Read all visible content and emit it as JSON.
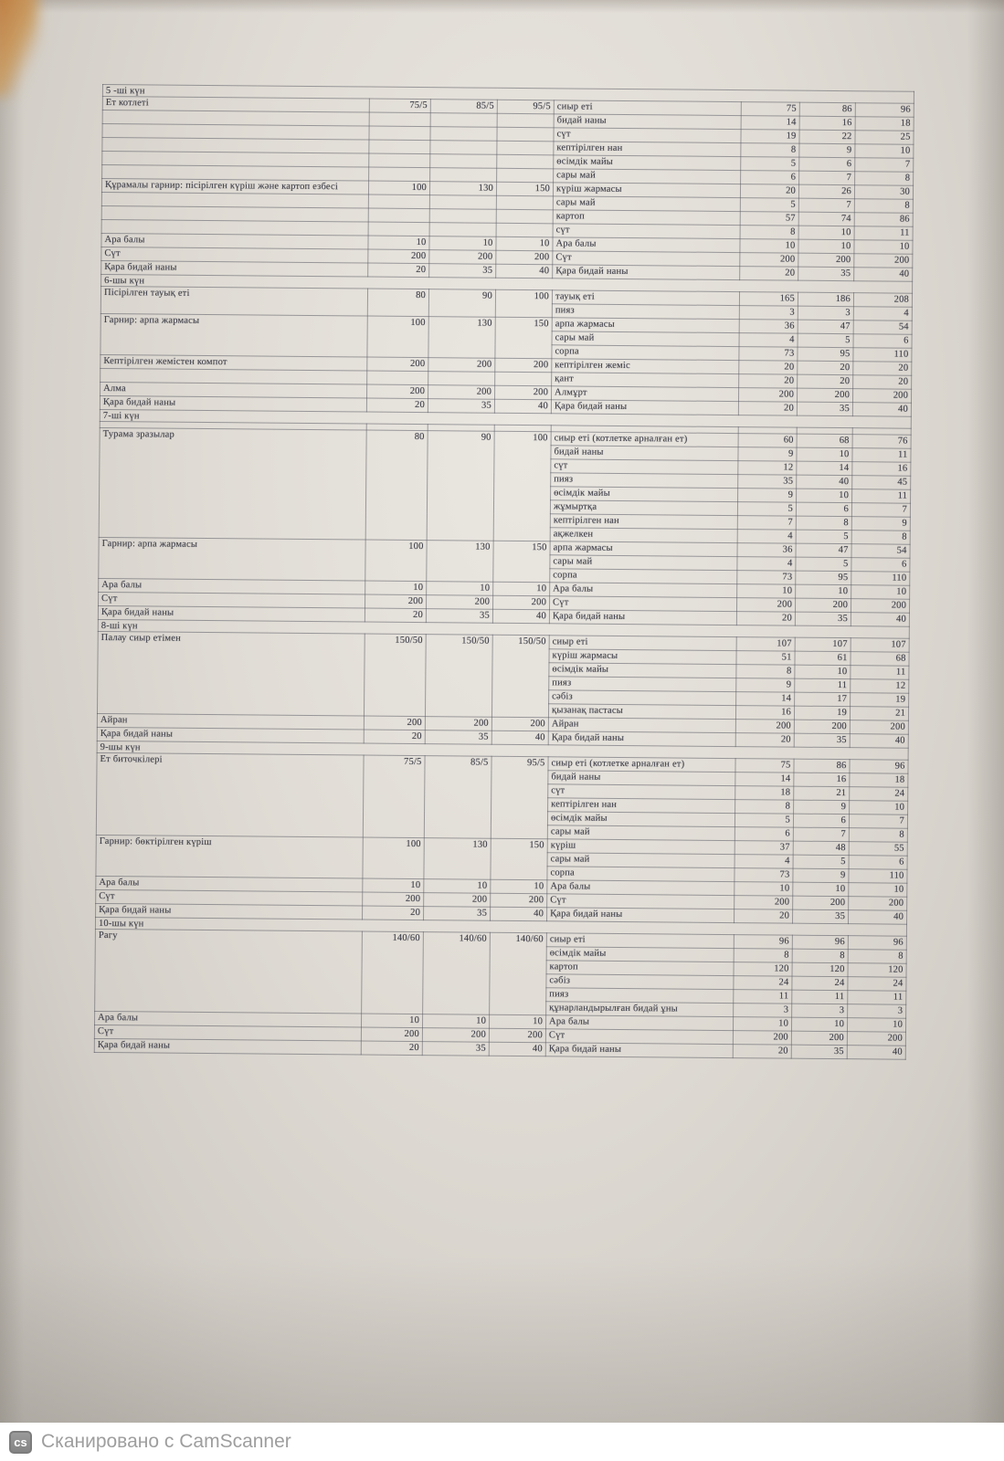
{
  "table": {
    "days": [
      {
        "title": "5 -ші күн",
        "rows": [
          {
            "dish": "Ет котлеті",
            "p": [
              "75/5",
              "85/5",
              "95/5"
            ],
            "span": 1,
            "ing": "сиыр еті",
            "v": [
              "75",
              "86",
              "96"
            ]
          },
          {
            "left_empty": true,
            "ing": "бидай наны",
            "v": [
              "14",
              "16",
              "18"
            ]
          },
          {
            "left_empty": true,
            "ing": "сүт",
            "v": [
              "19",
              "22",
              "25"
            ]
          },
          {
            "left_empty": true,
            "ing": "кептірілген нан",
            "v": [
              "8",
              "9",
              "10"
            ]
          },
          {
            "left_empty": true,
            "ing": "өсімдік майы",
            "v": [
              "5",
              "6",
              "7"
            ]
          },
          {
            "left_empty": true,
            "ing": "сары май",
            "v": [
              "6",
              "7",
              "8"
            ]
          },
          {
            "dish": "Құрамалы гарнир: пісірілген күріш және картоп езбесі",
            "p": [
              "100",
              "130",
              "150"
            ],
            "span": 1,
            "ing": "күріш жармасы",
            "v": [
              "20",
              "26",
              "30"
            ]
          },
          {
            "left_empty": true,
            "ing": "сары май",
            "v": [
              "5",
              "7",
              "8"
            ]
          },
          {
            "left_empty": true,
            "ing": "картоп",
            "v": [
              "57",
              "74",
              "86"
            ]
          },
          {
            "left_empty": true,
            "ing": "сүт",
            "v": [
              "8",
              "10",
              "11"
            ]
          },
          {
            "dish": "Ара балы",
            "p": [
              "10",
              "10",
              "10"
            ],
            "span": 1,
            "ing": "Ара балы",
            "v": [
              "10",
              "10",
              "10"
            ]
          },
          {
            "dish": "Сүт",
            "p": [
              "200",
              "200",
              "200"
            ],
            "span": 1,
            "ing": "Сүт",
            "v": [
              "200",
              "200",
              "200"
            ]
          },
          {
            "dish": "Қара бидай наны",
            "p": [
              "20",
              "35",
              "40"
            ],
            "span": 1,
            "ing": "Қара бидай наны",
            "v": [
              "20",
              "35",
              "40"
            ]
          }
        ]
      },
      {
        "title": "6-шы күн",
        "rows": [
          {
            "dish": "Пісірілген тауық еті",
            "p": [
              "80",
              "90",
              "100"
            ],
            "span": 2,
            "ing": "тауық еті",
            "v": [
              "165",
              "186",
              "208"
            ]
          },
          {
            "ing": "пияз",
            "v": [
              "3",
              "3",
              "4"
            ]
          },
          {
            "dish": "Гарнир: арпа жармасы",
            "p": [
              "100",
              "130",
              "150"
            ],
            "span": 3,
            "ing": "арпа жармасы",
            "v": [
              "36",
              "47",
              "54"
            ]
          },
          {
            "ing": "сары май",
            "v": [
              "4",
              "5",
              "6"
            ]
          },
          {
            "ing": "сорпа",
            "v": [
              "73",
              "95",
              "110"
            ]
          },
          {
            "dish": "Кептірілген жемістен компот",
            "p": [
              "200",
              "200",
              "200"
            ],
            "span": 1,
            "ing": "кептірілген жеміс",
            "v": [
              "20",
              "20",
              "20"
            ]
          },
          {
            "left_empty": true,
            "ing": "қант",
            "v": [
              "20",
              "20",
              "20"
            ]
          },
          {
            "dish": "Алма",
            "p": [
              "200",
              "200",
              "200"
            ],
            "span": 1,
            "ing": "Алмұрт",
            "v": [
              "200",
              "200",
              "200"
            ]
          },
          {
            "dish": "Қара бидай наны",
            "p": [
              "20",
              "35",
              "40"
            ],
            "span": 1,
            "ing": "Қара бидай наны",
            "v": [
              "20",
              "35",
              "40"
            ]
          }
        ]
      },
      {
        "title": "7-ші күн",
        "rows": [
          {
            "thin": true,
            "dish": "",
            "p": [
              "",
              "",
              ""
            ],
            "span": 1,
            "ing": "",
            "v": [
              "",
              "",
              ""
            ]
          },
          {
            "dish": "Турама зразылар",
            "p": [
              "80",
              "90",
              "100"
            ],
            "span": 8,
            "ing": "сиыр еті (котлетке арналған ет)",
            "v": [
              "60",
              "68",
              "76"
            ]
          },
          {
            "ing": "бидай наны",
            "v": [
              "9",
              "10",
              "11"
            ]
          },
          {
            "ing": "сүт",
            "v": [
              "12",
              "14",
              "16"
            ]
          },
          {
            "ing": "пияз",
            "v": [
              "35",
              "40",
              "45"
            ]
          },
          {
            "ing": "өсімдік майы",
            "v": [
              "9",
              "10",
              "11"
            ]
          },
          {
            "ing": "жұмыртқа",
            "v": [
              "5",
              "6",
              "7"
            ]
          },
          {
            "ing": "кептірілген нан",
            "v": [
              "7",
              "8",
              "9"
            ]
          },
          {
            "ing": "ақжелкен",
            "v": [
              "4",
              "5",
              "8"
            ]
          },
          {
            "dish": "Гарнир: арпа жармасы",
            "p": [
              "100",
              "130",
              "150"
            ],
            "span": 3,
            "ing": "арпа жармасы",
            "v": [
              "36",
              "47",
              "54"
            ]
          },
          {
            "ing": "сары май",
            "v": [
              "4",
              "5",
              "6"
            ]
          },
          {
            "ing": "сорпа",
            "v": [
              "73",
              "95",
              "110"
            ]
          },
          {
            "dish": "Ара балы",
            "p": [
              "10",
              "10",
              "10"
            ],
            "span": 1,
            "ing": "Ара балы",
            "v": [
              "10",
              "10",
              "10"
            ]
          },
          {
            "dish": "Сүт",
            "p": [
              "200",
              "200",
              "200"
            ],
            "span": 1,
            "ing": "Сүт",
            "v": [
              "200",
              "200",
              "200"
            ]
          },
          {
            "dish": "Қара бидай наны",
            "p": [
              "20",
              "35",
              "40"
            ],
            "span": 1,
            "ing": "Қара бидай наны",
            "v": [
              "20",
              "35",
              "40"
            ]
          }
        ]
      },
      {
        "title": "8-ші күн",
        "rows": [
          {
            "dish": "Палау сиыр етімен",
            "p": [
              "150/50",
              "150/50",
              "150/50"
            ],
            "span": 6,
            "ing": "сиыр еті",
            "v": [
              "107",
              "107",
              "107"
            ]
          },
          {
            "ing": "күріш жармасы",
            "v": [
              "51",
              "61",
              "68"
            ]
          },
          {
            "ing": "өсімдік майы",
            "v": [
              "8",
              "10",
              "11"
            ]
          },
          {
            "ing": "пияз",
            "v": [
              "9",
              "11",
              "12"
            ]
          },
          {
            "ing": "сәбіз",
            "v": [
              "14",
              "17",
              "19"
            ]
          },
          {
            "ing": "қызанақ пастасы",
            "v": [
              "16",
              "19",
              "21"
            ]
          },
          {
            "dish": "Айран",
            "p": [
              "200",
              "200",
              "200"
            ],
            "span": 1,
            "ing": "Айран",
            "v": [
              "200",
              "200",
              "200"
            ]
          },
          {
            "dish": "Қара бидай наны",
            "p": [
              "20",
              "35",
              "40"
            ],
            "span": 1,
            "ing": "Қара бидай наны",
            "v": [
              "20",
              "35",
              "40"
            ]
          }
        ]
      },
      {
        "title": "9-шы күн",
        "rows": [
          {
            "dish": "Ет биточкілері",
            "p": [
              "75/5",
              "85/5",
              "95/5"
            ],
            "span": 6,
            "ing": "сиыр еті (котлетке арналған ет)",
            "v": [
              "75",
              "86",
              "96"
            ]
          },
          {
            "ing": "бидай наны",
            "v": [
              "14",
              "16",
              "18"
            ]
          },
          {
            "ing": "сүт",
            "v": [
              "18",
              "21",
              "24"
            ]
          },
          {
            "ing": "кептірілген нан",
            "v": [
              "8",
              "9",
              "10"
            ]
          },
          {
            "ing": "өсімдік майы",
            "v": [
              "5",
              "6",
              "7"
            ]
          },
          {
            "ing": "сары май",
            "v": [
              "6",
              "7",
              "8"
            ]
          },
          {
            "dish": "Гарнир: бөктірілген күріш",
            "p": [
              "100",
              "130",
              "150"
            ],
            "span": 3,
            "ing": "күріш",
            "v": [
              "37",
              "48",
              "55"
            ]
          },
          {
            "ing": "сары май",
            "v": [
              "4",
              "5",
              "6"
            ]
          },
          {
            "ing": "сорпа",
            "v": [
              "73",
              "9",
              "110"
            ]
          },
          {
            "dish": "Ара балы",
            "p": [
              "10",
              "10",
              "10"
            ],
            "span": 1,
            "ing": "Ара балы",
            "v": [
              "10",
              "10",
              "10"
            ]
          },
          {
            "dish": "Сүт",
            "p": [
              "200",
              "200",
              "200"
            ],
            "span": 1,
            "ing": "Сүт",
            "v": [
              "200",
              "200",
              "200"
            ]
          },
          {
            "dish": "Қара бидай наны",
            "p": [
              "20",
              "35",
              "40"
            ],
            "span": 1,
            "ing": "Қара бидай наны",
            "v": [
              "20",
              "35",
              "40"
            ]
          }
        ]
      },
      {
        "title": "10-шы күн",
        "rows": [
          {
            "dish": "Рагу",
            "p": [
              "140/60",
              "140/60",
              "140/60"
            ],
            "span": 6,
            "ing": "сиыр еті",
            "v": [
              "96",
              "96",
              "96"
            ]
          },
          {
            "ing": "өсімдік майы",
            "v": [
              "8",
              "8",
              "8"
            ]
          },
          {
            "ing": "картоп",
            "v": [
              "120",
              "120",
              "120"
            ]
          },
          {
            "ing": "сәбіз",
            "v": [
              "24",
              "24",
              "24"
            ]
          },
          {
            "ing": "пияз",
            "v": [
              "11",
              "11",
              "11"
            ]
          },
          {
            "ing": "құнарландырылған бидай ұны",
            "v": [
              "3",
              "3",
              "3"
            ]
          },
          {
            "dish": "Ара балы",
            "p": [
              "10",
              "10",
              "10"
            ],
            "span": 1,
            "ing": "Ара балы",
            "v": [
              "10",
              "10",
              "10"
            ]
          },
          {
            "dish": "Сүт",
            "p": [
              "200",
              "200",
              "200"
            ],
            "span": 1,
            "ing": "Сүт",
            "v": [
              "200",
              "200",
              "200"
            ]
          },
          {
            "dish": "Қара бидай наны",
            "p": [
              "20",
              "35",
              "40"
            ],
            "span": 1,
            "ing": "Қара бидай наны",
            "v": [
              "20",
              "35",
              "40"
            ]
          }
        ]
      }
    ]
  },
  "footer": {
    "icon": "cs",
    "text": "Сканировано с CamScanner"
  },
  "colors": {
    "paper": "#e0ddd6",
    "ink": "#40404a",
    "border": "#6f6f7a",
    "footer_text": "#9e9e9e",
    "corner_accent": "#bc7436"
  }
}
